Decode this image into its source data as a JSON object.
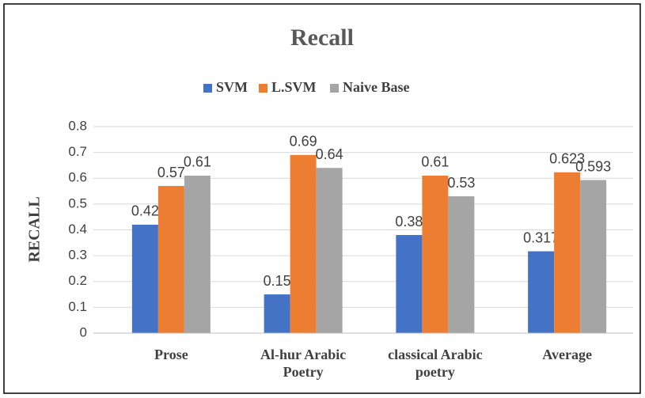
{
  "chart_data": {
    "type": "bar",
    "title": "Recall",
    "y_label": "RECALL",
    "categories": [
      "Prose",
      "Al-hur Arabic Poetry",
      "classical Arabic poetry",
      "Average"
    ],
    "series": [
      {
        "name": "SVM",
        "color": "#4472c4",
        "values": [
          0.42,
          0.15,
          0.38,
          0.317
        ]
      },
      {
        "name": "L.SVM",
        "color": "#ed7d31",
        "values": [
          0.57,
          0.69,
          0.61,
          0.623
        ]
      },
      {
        "name": "Naive Base",
        "color": "#a5a5a5",
        "values": [
          0.61,
          0.64,
          0.53,
          0.593
        ]
      }
    ],
    "ylim": [
      0,
      0.8
    ],
    "yticks": [
      0,
      0.1,
      0.2,
      0.3,
      0.4,
      0.5,
      0.6,
      0.7,
      0.8
    ],
    "grid": true,
    "legend": "top"
  }
}
